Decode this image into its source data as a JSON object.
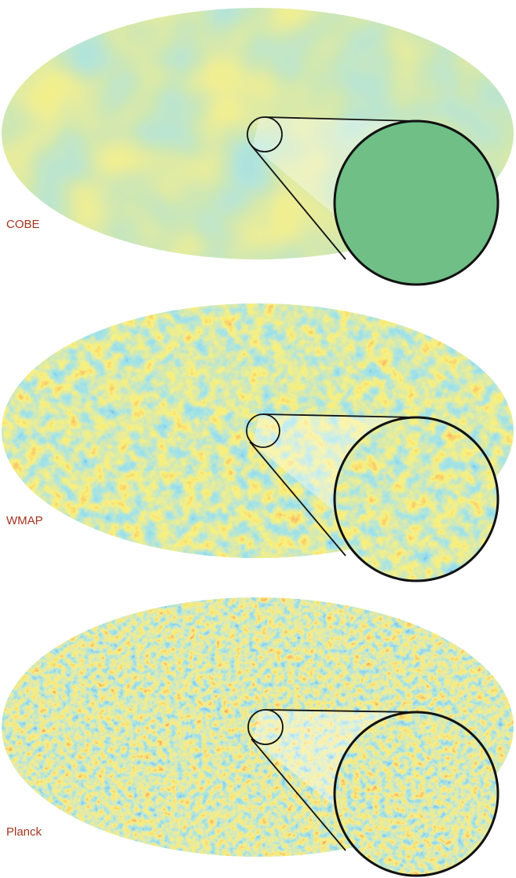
{
  "panels": [
    {
      "label": "COBE"
    },
    {
      "label": "WMAP"
    },
    {
      "label": "Planck"
    }
  ]
}
